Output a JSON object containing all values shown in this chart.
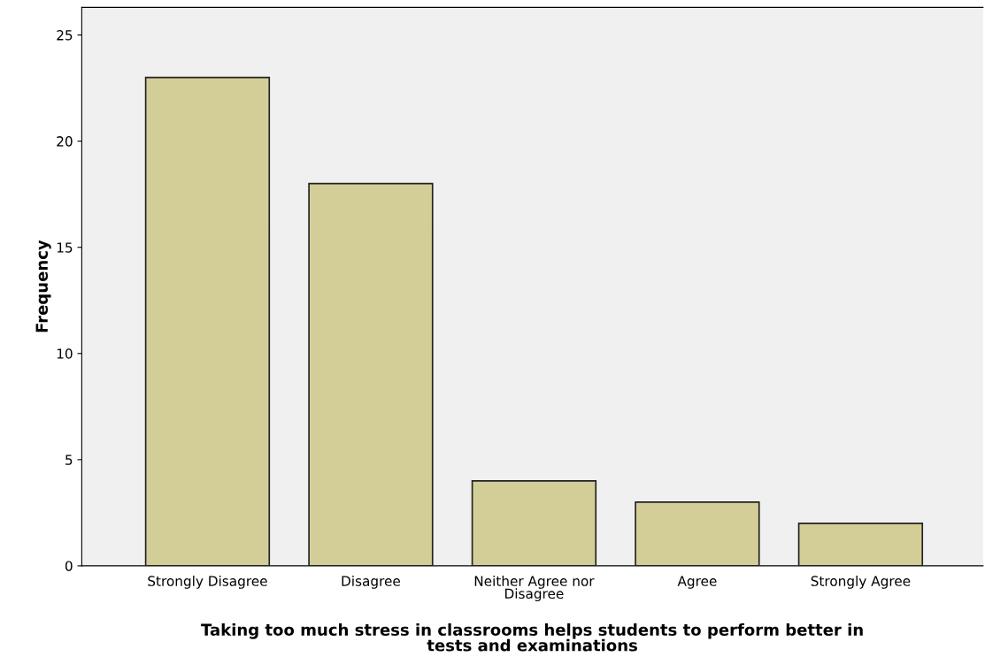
{
  "chart_data": {
    "type": "bar",
    "categories": [
      "Strongly Disagree",
      "Disagree",
      "Neither Agree nor\nDisagree",
      "Agree",
      "Strongly Agree"
    ],
    "values": [
      23,
      18,
      4,
      3,
      2
    ],
    "color": "#d3ce97",
    "xlabel": "Taking too much stress in classrooms helps students to perform better in\ntests and examinations",
    "ylabel": "Frequency",
    "ylim": [
      0,
      26.3
    ],
    "yticks": [
      0,
      5,
      10,
      15,
      20,
      25
    ],
    "grid": false
  }
}
